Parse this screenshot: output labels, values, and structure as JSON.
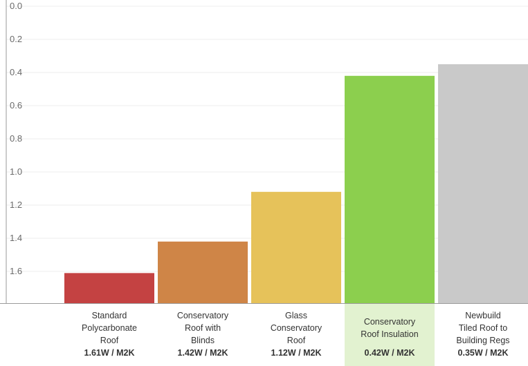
{
  "chart_data": {
    "type": "bar",
    "title": "",
    "xlabel": "",
    "ylabel": "",
    "y_inverted": true,
    "ylim": [
      0.0,
      1.78
    ],
    "yticks": [
      "0.0",
      "0.2",
      "0.4",
      "0.6",
      "0.8",
      "1.0",
      "1.2",
      "1.4",
      "1.6"
    ],
    "grid": true,
    "categories": [
      "Standard\nPolycarbonate\nRoof",
      "Conservatory\nRoof with\nBlinds",
      "Glass\nConservatory\nRoof",
      "Conservatory\nRoof Insulation",
      "Newbuild\nTiled Roof to\nBuilding Regs"
    ],
    "value_labels": [
      "1.61W / M2K",
      "1.42W / M2K",
      "1.12W / M2K",
      "0.42W / M2K",
      "0.35W / M2K"
    ],
    "values": [
      1.61,
      1.42,
      1.12,
      0.42,
      0.35
    ],
    "colors": [
      "#c44242",
      "#cf8547",
      "#e6c25a",
      "#8ccf4e",
      "#c9c9c9"
    ],
    "highlight_index": 3,
    "highlight_color": "#e2f2d0",
    "grid_color": "#ececec",
    "axis_color": "#9a9a9a"
  }
}
